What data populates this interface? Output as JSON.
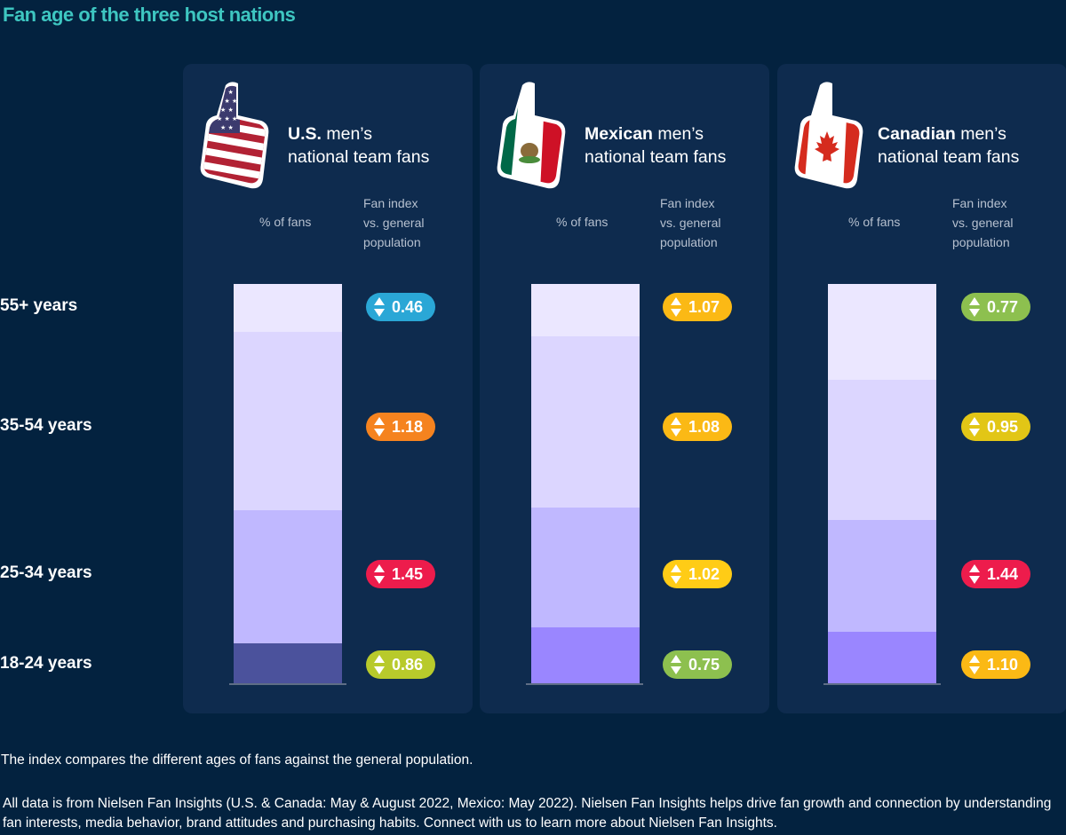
{
  "title": "Fan age of the three host nations",
  "age_groups": [
    "55+ years",
    "35-54 years",
    "25-34 years",
    "18-24 years"
  ],
  "column_headers": {
    "pct": "% of fans",
    "index_line1": "Fan index",
    "index_line2": "vs. general",
    "index_line3": "population"
  },
  "panels": [
    {
      "country": "U.S.",
      "rest1": " men’s",
      "rest2": "national team fans",
      "flag": "us-flag-foam-finger-icon"
    },
    {
      "country": "Mexican",
      "rest1": " men’s",
      "rest2": "national team fans",
      "flag": "mexico-flag-foam-finger-icon"
    },
    {
      "country": "Canadian",
      "rest1": " men’s",
      "rest2": "national team fans",
      "flag": "canada-flag-foam-finger-icon"
    }
  ],
  "chart_data": {
    "type": "bar",
    "stacked": true,
    "categories": [
      "U.S.",
      "Mexican",
      "Canadian"
    ],
    "series": [
      {
        "name": "18-24 years",
        "values": [
          10,
          14,
          13
        ],
        "index": [
          "0.86",
          "0.75",
          "1.10"
        ]
      },
      {
        "name": "25-34 years",
        "values": [
          33,
          30,
          28
        ],
        "index": [
          "1.45",
          "1.02",
          "1.44"
        ]
      },
      {
        "name": "35-54 years",
        "values": [
          45,
          43,
          35
        ],
        "index": [
          "1.18",
          "1.08",
          "0.95"
        ]
      },
      {
        "name": "55+ years",
        "values": [
          12,
          13,
          24
        ],
        "index": [
          "0.46",
          "1.07",
          "0.77"
        ]
      }
    ],
    "ylim": [
      0,
      100
    ]
  },
  "colors": {
    "background": "#03223f",
    "panel": "#0e2b4e",
    "title": "#3ec6c1",
    "us_segments": [
      "#4b529c",
      "#c0b8ff",
      "#dcd6ff",
      "#ebe7ff"
    ],
    "other_segments": [
      "#9a86ff",
      "#c0b8ff",
      "#dcd6ff",
      "#ebe7ff"
    ],
    "pill_values": {
      "0.46": "#2aa7d6",
      "1.18": "#f5831f",
      "1.45": "#ed1c4c",
      "0.86": "#b8ca2b",
      "1.07": "#fbb915",
      "1.08": "#fbb915",
      "1.02": "#ffcc16",
      "0.75": "#8dc04f",
      "0.77": "#8dc04f",
      "0.95": "#e2c616",
      "1.44": "#ed1c4c",
      "1.10": "#fbb915"
    }
  },
  "footnote": "The index compares the different ages of fans against the general population.",
  "source": "All data is from Nielsen Fan Insights (U.S. & Canada: May & August 2022, Mexico: May 2022). Nielsen Fan Insights helps drive fan growth and connection by understanding fan interests, media behavior, brand attitudes and purchasing habits. Connect with us to learn more about Nielsen Fan Insights."
}
